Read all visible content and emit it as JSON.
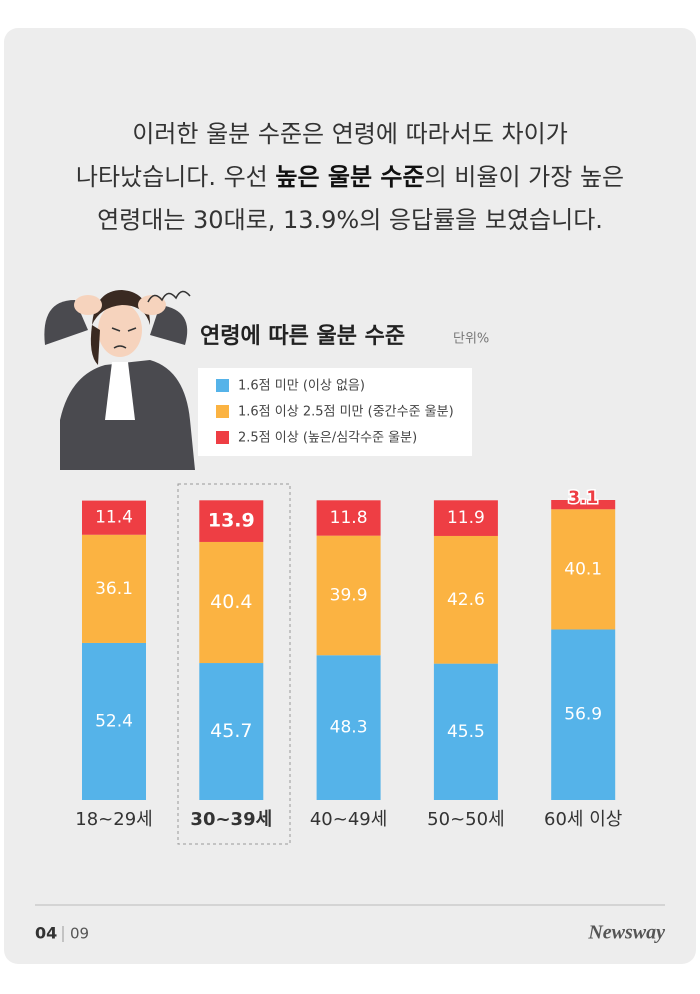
{
  "intro": {
    "lines": [
      [
        "이러한 울분 수준은 연령에 따라서도 차이가"
      ],
      [
        "나타났습니다. 우선 ",
        "높은 울분 수준",
        "의 비율이 가장 높은"
      ],
      [
        "연령대는 30대로, 13.9%의 응답률을 보였습니다."
      ]
    ],
    "bold": [
      [
        1,
        1
      ]
    ]
  },
  "chart_data": {
    "type": "stacked-bar",
    "title": "연령에 따른 울분 수준",
    "unit": "단위%",
    "categories": [
      "18~29세",
      "30~39세",
      "40~49세",
      "50~50세",
      "60세 이상"
    ],
    "highlight": 1,
    "series": [
      {
        "name": "1.6점 미만 (이상 없음)",
        "color": "#55b3e9",
        "values": [
          52.4,
          45.7,
          48.3,
          45.5,
          56.9
        ]
      },
      {
        "name": "1.6점 이상 2.5점 미만 (중간수준 울분)",
        "color": "#fbb342",
        "values": [
          36.1,
          40.4,
          39.9,
          42.6,
          40.1
        ]
      },
      {
        "name": "2.5점 이상 (높은/심각수준 울분)",
        "color": "#ee3e44",
        "values": [
          11.4,
          13.9,
          11.8,
          11.9,
          3.1
        ]
      }
    ]
  },
  "footer": {
    "page": "04",
    "total": "09",
    "brand": "Newsway"
  }
}
